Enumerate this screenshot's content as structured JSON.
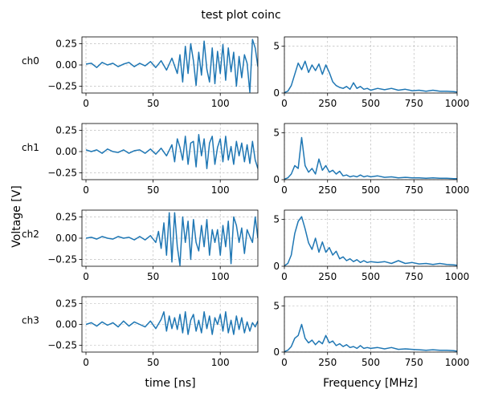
{
  "figure": {
    "title": "test plot coinc",
    "ylabel": "Voltage [V]",
    "xlabel_time": "time [ns]",
    "xlabel_freq": "Frequency [MHz]"
  },
  "colors": {
    "trace": "#1f77b4",
    "grid": "#b0b0b0"
  },
  "chart_data": [
    {
      "type": "line",
      "name": "ch0",
      "panel": "time",
      "ylabel": "ch0",
      "xlim": [
        -3,
        128
      ],
      "ylim": [
        -0.33,
        0.33
      ],
      "xticks": [
        0,
        50,
        100
      ],
      "yticks": [
        0.25,
        0.0,
        -0.25
      ],
      "xtick_labels": [
        "0",
        "50",
        "100"
      ],
      "ytick_labels": [
        "0.25",
        "0.00",
        "−0.25"
      ],
      "grid": true,
      "x": [
        0,
        4,
        8,
        12,
        16,
        20,
        24,
        28,
        32,
        36,
        40,
        44,
        48,
        52,
        56,
        60,
        64,
        68,
        70,
        72,
        74,
        76,
        78,
        80,
        82,
        84,
        86,
        88,
        90,
        92,
        94,
        96,
        98,
        100,
        102,
        104,
        106,
        108,
        110,
        112,
        114,
        116,
        118,
        120,
        122,
        124,
        126,
        128
      ],
      "y": [
        0.01,
        0.02,
        -0.03,
        0.03,
        0.0,
        0.02,
        -0.02,
        0.01,
        0.03,
        -0.02,
        0.02,
        -0.01,
        0.04,
        -0.03,
        0.05,
        -0.06,
        0.08,
        -0.1,
        0.12,
        -0.2,
        0.22,
        -0.1,
        0.25,
        0.05,
        -0.24,
        0.15,
        -0.12,
        0.28,
        -0.05,
        -0.2,
        0.2,
        -0.22,
        0.16,
        -0.1,
        0.24,
        -0.18,
        0.2,
        -0.08,
        0.15,
        -0.25,
        0.1,
        -0.15,
        0.12,
        0.02,
        -0.32,
        0.3,
        0.2,
        -0.02
      ]
    },
    {
      "type": "line",
      "name": "ch0",
      "panel": "freq",
      "xlim": [
        0,
        1000
      ],
      "ylim": [
        0,
        6
      ],
      "xticks": [
        0,
        250,
        500,
        750,
        1000
      ],
      "yticks": [
        5,
        0
      ],
      "xtick_labels": [
        "0",
        "250",
        "500",
        "750",
        "1000"
      ],
      "ytick_labels": [
        "5",
        "0"
      ],
      "grid": true,
      "x": [
        0,
        20,
        40,
        60,
        80,
        100,
        120,
        140,
        160,
        180,
        200,
        220,
        240,
        260,
        280,
        300,
        320,
        340,
        360,
        380,
        400,
        420,
        440,
        460,
        480,
        500,
        540,
        580,
        620,
        660,
        700,
        740,
        780,
        820,
        860,
        900,
        940,
        980,
        1000
      ],
      "y": [
        0.05,
        0.2,
        0.8,
        2.0,
        3.2,
        2.5,
        3.4,
        2.2,
        3.0,
        2.4,
        3.1,
        2.0,
        3.0,
        2.2,
        1.2,
        0.8,
        0.6,
        0.5,
        0.7,
        0.4,
        1.1,
        0.5,
        0.7,
        0.4,
        0.5,
        0.3,
        0.5,
        0.35,
        0.5,
        0.3,
        0.4,
        0.25,
        0.3,
        0.2,
        0.3,
        0.2,
        0.2,
        0.15,
        0.1
      ]
    },
    {
      "type": "line",
      "name": "ch1",
      "panel": "time",
      "ylabel": "ch1",
      "xlim": [
        -3,
        128
      ],
      "ylim": [
        -0.33,
        0.33
      ],
      "xticks": [
        0,
        50,
        100
      ],
      "yticks": [
        0.25,
        0.0,
        -0.25
      ],
      "xtick_labels": [
        "0",
        "50",
        "100"
      ],
      "ytick_labels": [
        "0.25",
        "0.00",
        "−0.25"
      ],
      "grid": true,
      "x": [
        0,
        4,
        8,
        12,
        16,
        20,
        24,
        28,
        32,
        36,
        40,
        44,
        48,
        52,
        56,
        60,
        64,
        66,
        68,
        70,
        72,
        74,
        76,
        78,
        80,
        82,
        84,
        86,
        88,
        90,
        92,
        94,
        96,
        98,
        100,
        102,
        104,
        106,
        108,
        110,
        112,
        114,
        116,
        118,
        120,
        122,
        124,
        126,
        128
      ],
      "y": [
        0.02,
        0.0,
        0.02,
        -0.02,
        0.03,
        0.0,
        -0.01,
        0.02,
        -0.02,
        0.01,
        0.02,
        -0.02,
        0.03,
        -0.03,
        0.04,
        -0.05,
        0.08,
        -0.12,
        0.15,
        0.05,
        -0.1,
        0.18,
        -0.15,
        0.1,
        0.12,
        -0.18,
        0.2,
        -0.05,
        0.15,
        -0.2,
        0.1,
        0.18,
        -0.15,
        0.05,
        0.15,
        -0.12,
        0.18,
        -0.1,
        0.06,
        -0.15,
        0.12,
        -0.05,
        0.1,
        -0.12,
        0.08,
        -0.14,
        0.12,
        -0.1,
        -0.2
      ]
    },
    {
      "type": "line",
      "name": "ch1",
      "panel": "freq",
      "xlim": [
        0,
        1000
      ],
      "ylim": [
        0,
        6
      ],
      "xticks": [
        0,
        250,
        500,
        750,
        1000
      ],
      "yticks": [
        5,
        0
      ],
      "xtick_labels": [
        "0",
        "250",
        "500",
        "750",
        "1000"
      ],
      "ytick_labels": [
        "5",
        "0"
      ],
      "grid": true,
      "x": [
        0,
        20,
        40,
        60,
        80,
        100,
        120,
        140,
        160,
        180,
        200,
        220,
        240,
        260,
        280,
        300,
        320,
        340,
        360,
        380,
        400,
        420,
        440,
        460,
        480,
        500,
        540,
        580,
        620,
        660,
        700,
        740,
        780,
        820,
        860,
        900,
        940,
        980,
        1000
      ],
      "y": [
        0.05,
        0.2,
        0.6,
        1.5,
        1.2,
        4.5,
        1.5,
        0.8,
        1.2,
        0.6,
        2.2,
        1.0,
        1.5,
        0.8,
        1.0,
        0.6,
        0.9,
        0.4,
        0.5,
        0.3,
        0.4,
        0.3,
        0.5,
        0.3,
        0.4,
        0.3,
        0.4,
        0.25,
        0.3,
        0.2,
        0.25,
        0.2,
        0.2,
        0.15,
        0.2,
        0.15,
        0.15,
        0.1,
        0.1
      ]
    },
    {
      "type": "line",
      "name": "ch2",
      "panel": "time",
      "ylabel": "ch2",
      "xlim": [
        -3,
        128
      ],
      "ylim": [
        -0.33,
        0.33
      ],
      "xticks": [
        0,
        50,
        100
      ],
      "yticks": [
        0.25,
        0.0,
        -0.25
      ],
      "xtick_labels": [
        "0",
        "50",
        "100"
      ],
      "ytick_labels": [
        "0.25",
        "0.00",
        "−0.25"
      ],
      "grid": true,
      "x": [
        0,
        4,
        8,
        12,
        16,
        20,
        24,
        28,
        32,
        36,
        40,
        44,
        48,
        52,
        54,
        56,
        58,
        60,
        62,
        64,
        66,
        68,
        70,
        72,
        74,
        76,
        78,
        80,
        82,
        84,
        86,
        88,
        90,
        92,
        94,
        96,
        98,
        100,
        102,
        104,
        106,
        108,
        110,
        112,
        114,
        116,
        118,
        120,
        122,
        124,
        126,
        128
      ],
      "y": [
        0.0,
        0.01,
        -0.01,
        0.02,
        0.0,
        -0.01,
        0.02,
        0.0,
        0.01,
        -0.02,
        0.02,
        -0.02,
        0.03,
        -0.05,
        0.08,
        -0.12,
        0.18,
        -0.2,
        0.3,
        -0.28,
        0.3,
        -0.1,
        -0.32,
        0.25,
        -0.05,
        0.2,
        -0.25,
        0.22,
        -0.05,
        -0.15,
        0.15,
        -0.1,
        0.22,
        -0.2,
        0.1,
        -0.05,
        0.1,
        -0.2,
        0.15,
        -0.1,
        0.2,
        -0.3,
        0.25,
        0.15,
        -0.05,
        0.12,
        -0.18,
        0.1,
        0.02,
        -0.05,
        0.25,
        0.0
      ]
    },
    {
      "type": "line",
      "name": "ch2",
      "panel": "freq",
      "xlim": [
        0,
        1000
      ],
      "ylim": [
        0,
        6
      ],
      "xticks": [
        0,
        250,
        500,
        750,
        1000
      ],
      "yticks": [
        5,
        0
      ],
      "xtick_labels": [
        "0",
        "250",
        "500",
        "750",
        "1000"
      ],
      "ytick_labels": [
        "5",
        "0"
      ],
      "grid": true,
      "x": [
        0,
        20,
        40,
        60,
        80,
        100,
        120,
        140,
        160,
        180,
        200,
        220,
        240,
        260,
        280,
        300,
        320,
        340,
        360,
        380,
        400,
        420,
        440,
        460,
        480,
        500,
        540,
        580,
        620,
        660,
        700,
        740,
        780,
        820,
        860,
        900,
        940,
        980,
        1000
      ],
      "y": [
        0.05,
        0.3,
        1.2,
        3.5,
        4.8,
        5.3,
        4.0,
        2.5,
        1.8,
        3.0,
        1.5,
        2.6,
        1.5,
        2.0,
        1.2,
        1.6,
        0.8,
        1.0,
        0.6,
        0.8,
        0.5,
        0.7,
        0.4,
        0.6,
        0.4,
        0.5,
        0.4,
        0.5,
        0.3,
        0.6,
        0.3,
        0.4,
        0.25,
        0.3,
        0.2,
        0.3,
        0.2,
        0.15,
        0.1
      ]
    },
    {
      "type": "line",
      "name": "ch3",
      "panel": "time",
      "ylabel": "ch3",
      "xlim": [
        -3,
        128
      ],
      "ylim": [
        -0.33,
        0.33
      ],
      "xticks": [
        0,
        50,
        100
      ],
      "yticks": [
        0.25,
        0.0,
        -0.25
      ],
      "xtick_labels": [
        "0",
        "50",
        "100"
      ],
      "ytick_labels": [
        "0.25",
        "0.00",
        "−0.25"
      ],
      "grid": true,
      "x": [
        0,
        4,
        8,
        12,
        16,
        20,
        24,
        28,
        32,
        36,
        40,
        44,
        48,
        52,
        56,
        58,
        60,
        62,
        64,
        66,
        68,
        70,
        72,
        74,
        76,
        78,
        80,
        82,
        84,
        86,
        88,
        90,
        92,
        94,
        96,
        98,
        100,
        102,
        104,
        106,
        108,
        110,
        112,
        114,
        116,
        118,
        120,
        122,
        124,
        126,
        128
      ],
      "y": [
        0.0,
        0.02,
        -0.02,
        0.03,
        -0.01,
        0.02,
        -0.03,
        0.04,
        -0.02,
        0.03,
        0.0,
        -0.03,
        0.04,
        -0.05,
        0.06,
        0.15,
        -0.08,
        0.1,
        -0.05,
        0.08,
        -0.06,
        0.12,
        -0.1,
        0.15,
        -0.12,
        0.05,
        0.12,
        -0.08,
        0.05,
        -0.1,
        0.15,
        -0.05,
        0.1,
        -0.12,
        0.08,
        0.0,
        0.12,
        -0.08,
        0.15,
        -0.1,
        0.05,
        -0.12,
        0.1,
        -0.06,
        0.08,
        -0.1,
        0.03,
        -0.08,
        0.02,
        -0.03,
        0.04
      ]
    },
    {
      "type": "line",
      "name": "ch3",
      "panel": "freq",
      "xlim": [
        0,
        1000
      ],
      "ylim": [
        0,
        6
      ],
      "xticks": [
        0,
        250,
        500,
        750,
        1000
      ],
      "yticks": [
        5,
        0
      ],
      "xtick_labels": [
        "0",
        "250",
        "500",
        "750",
        "1000"
      ],
      "ytick_labels": [
        "5",
        "0"
      ],
      "grid": true,
      "x": [
        0,
        20,
        40,
        60,
        80,
        100,
        120,
        140,
        160,
        180,
        200,
        220,
        240,
        260,
        280,
        300,
        320,
        340,
        360,
        380,
        400,
        420,
        440,
        460,
        480,
        500,
        540,
        580,
        620,
        660,
        700,
        740,
        780,
        820,
        860,
        900,
        940,
        980,
        1000
      ],
      "y": [
        0.05,
        0.2,
        0.6,
        1.5,
        1.8,
        3.0,
        1.5,
        1.0,
        1.3,
        0.8,
        1.2,
        0.9,
        1.8,
        1.0,
        1.2,
        0.7,
        0.9,
        0.6,
        0.8,
        0.5,
        0.6,
        0.4,
        0.7,
        0.4,
        0.5,
        0.4,
        0.5,
        0.35,
        0.5,
        0.3,
        0.35,
        0.3,
        0.25,
        0.2,
        0.25,
        0.2,
        0.2,
        0.15,
        0.1
      ]
    }
  ]
}
